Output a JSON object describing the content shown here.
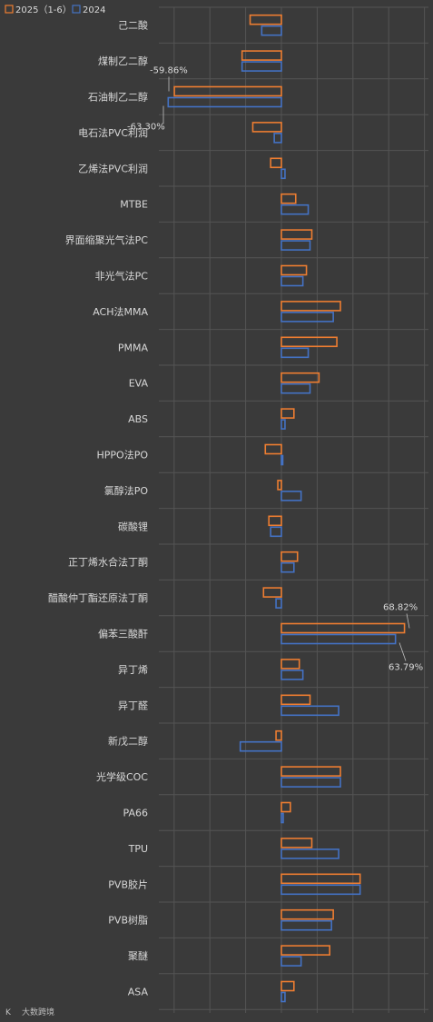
{
  "chart_data": {
    "type": "bar",
    "orientation": "horizontal",
    "legend_position": "top-left",
    "grid": true,
    "categories": [
      "己二酸",
      "煤制乙二醇",
      "石油制乙二醇",
      "电石法PVC利润",
      "乙烯法PVC利润",
      "MTBE",
      "界面缩聚光气法PC",
      "非光气法PC",
      "ACH法MMA",
      "PMMA",
      "EVA",
      "ABS",
      "HPPO法PO",
      "氯醇法PO",
      "碳酸锂",
      "正丁烯水合法丁酮",
      "醋酸仲丁酯还原法丁酮",
      "偏苯三酸酐",
      "异丁烯",
      "异丁醛",
      "新戊二醇",
      "光学级COC",
      "PA66",
      "TPU",
      "PVB胶片",
      "PVB树脂",
      "聚醚",
      "ASA"
    ],
    "series": [
      {
        "name": "2025（1-6）",
        "color": "#ed7d31",
        "values": [
          -17.5,
          -22,
          -59.86,
          -16,
          -6,
          8,
          17,
          14,
          33,
          31,
          21,
          7,
          -9,
          -2,
          -7,
          9,
          -10,
          68.82,
          10,
          16,
          -3,
          33,
          5,
          17,
          44,
          29,
          27,
          7
        ]
      },
      {
        "name": "2024",
        "color": "#4472c4",
        "values": [
          -11,
          -22,
          -63.3,
          -4,
          2,
          15,
          16,
          12,
          29,
          15,
          16,
          2,
          0.5,
          11,
          -6,
          7,
          -3,
          63.79,
          12,
          32,
          -23,
          33,
          1,
          32,
          44,
          28,
          11,
          2
        ]
      }
    ],
    "data_labels": [
      "-59.86%",
      "-63.30%",
      "68.82%",
      "63.79%"
    ],
    "xlim": [
      -75,
      80
    ]
  },
  "legend": {
    "series_2025": "2025（1-6）",
    "series_2024": "2024"
  },
  "watermark": "大数跨境"
}
